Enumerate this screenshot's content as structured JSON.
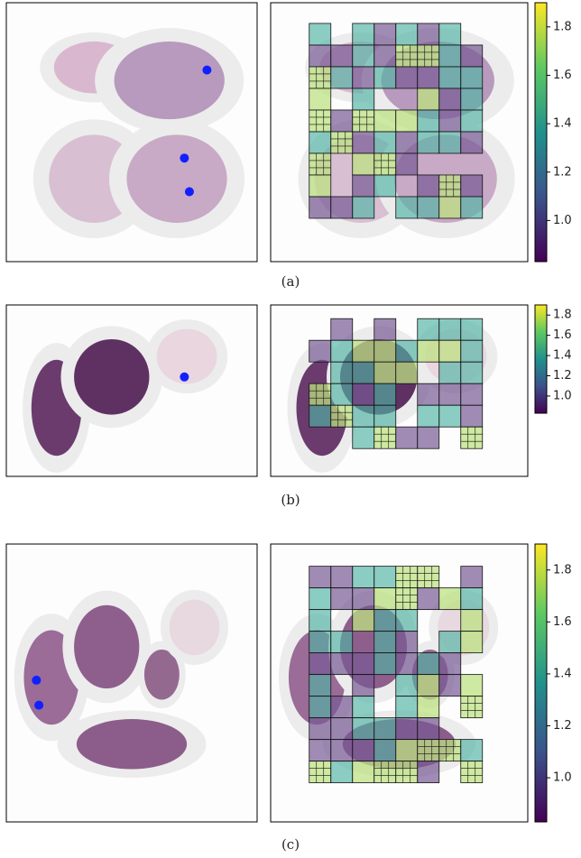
{
  "panels": [
    {
      "caption": "(a)",
      "colorbar": {
        "clim": [
          0.83,
          1.9
        ],
        "ticks": [
          {
            "value": 1.0,
            "label": "1.0"
          },
          {
            "value": 1.2,
            "label": "1.2"
          },
          {
            "value": 1.4,
            "label": "1.4"
          },
          {
            "value": 1.6,
            "label": "1.6"
          },
          {
            "value": 1.8,
            "label": "1.8"
          }
        ]
      }
    },
    {
      "caption": "(b)",
      "colorbar": {
        "clim": [
          0.83,
          1.9
        ],
        "ticks": [
          {
            "value": 1.0,
            "label": "1.0"
          },
          {
            "value": 1.2,
            "label": "1.2"
          },
          {
            "value": 1.4,
            "label": "1.4"
          },
          {
            "value": 1.6,
            "label": "1.6"
          },
          {
            "value": 1.8,
            "label": "1.8"
          }
        ]
      }
    },
    {
      "caption": "(c)",
      "colorbar": {
        "clim": [
          0.83,
          1.9
        ],
        "ticks": [
          {
            "value": 1.0,
            "label": "1.0"
          },
          {
            "value": 1.2,
            "label": "1.2"
          },
          {
            "value": 1.4,
            "label": "1.4"
          },
          {
            "value": 1.6,
            "label": "1.6"
          },
          {
            "value": 1.8,
            "label": "1.8"
          }
        ]
      }
    }
  ]
}
